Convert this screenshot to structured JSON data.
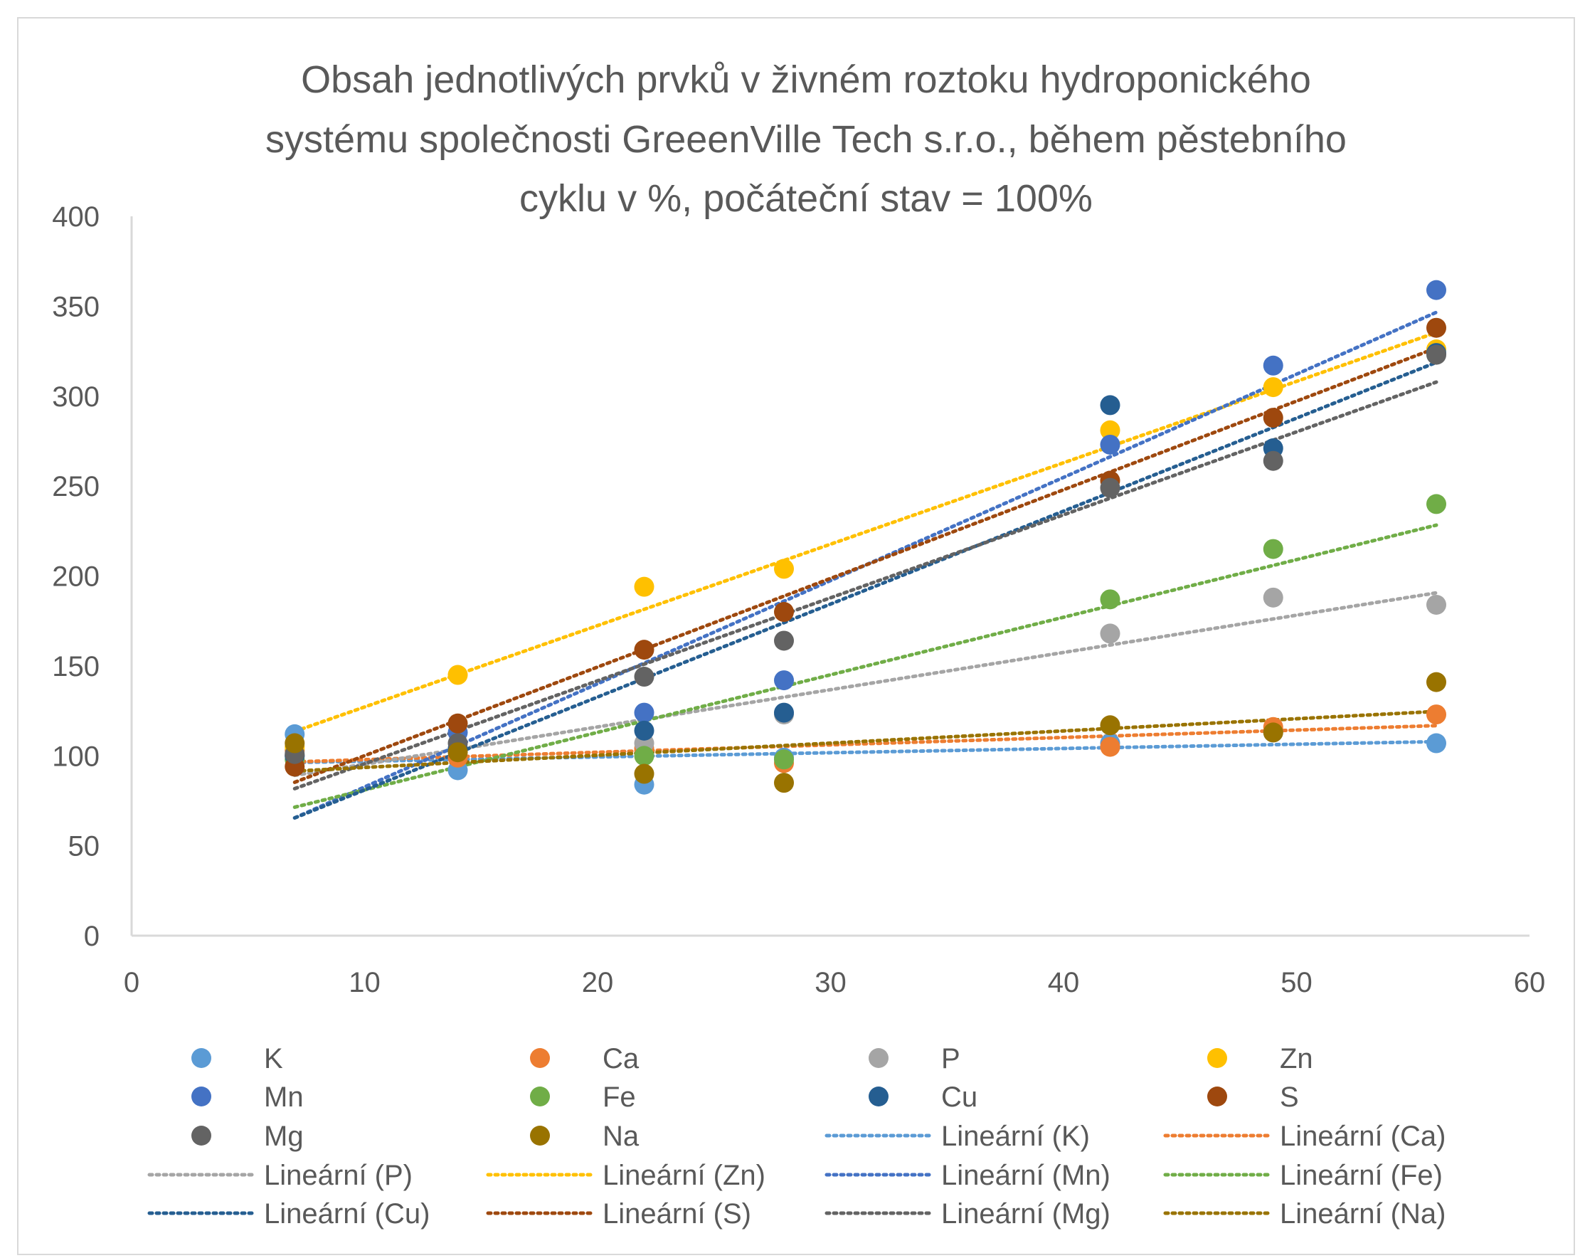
{
  "chart_data": {
    "type": "scatter",
    "title_lines": [
      "Obsah jednotlivých prvků v živném roztoku hydroponického",
      "systému společnosti GreeenVille Tech s.r.o., během pěstebního",
      "cyklu v %, počáteční stav = 100%"
    ],
    "xlabel": "",
    "ylabel": "",
    "xlim": [
      0,
      60
    ],
    "ylim": [
      0,
      400
    ],
    "xticks": [
      "0",
      "10",
      "20",
      "30",
      "40",
      "50",
      "60"
    ],
    "yticks": [
      "0",
      "50",
      "100",
      "150",
      "200",
      "250",
      "300",
      "350",
      "400"
    ],
    "grid": false,
    "legend_position": "bottom",
    "x": [
      7,
      14,
      22,
      28,
      42,
      49,
      56
    ],
    "series": [
      {
        "name": "K",
        "color": "#5b9bd5",
        "values": [
          112,
          92,
          84,
          99,
          107,
          113,
          107
        ]
      },
      {
        "name": "Ca",
        "color": "#ed7d31",
        "values": [
          103,
          99,
          104,
          96,
          105,
          116,
          123
        ]
      },
      {
        "name": "P",
        "color": "#a5a5a5",
        "values": [
          100,
          104,
          107,
          123,
          168,
          188,
          184
        ]
      },
      {
        "name": "Zn",
        "color": "#ffc000",
        "values": [
          105,
          145,
          194,
          204,
          281,
          305,
          326
        ]
      },
      {
        "name": "Mn",
        "color": "#4472c4",
        "values": [
          100,
          113,
          124,
          142,
          273,
          317,
          359
        ]
      },
      {
        "name": "Fe",
        "color": "#70ad47",
        "values": [
          98,
          103,
          100,
          98,
          187,
          215,
          240
        ]
      },
      {
        "name": "Cu",
        "color": "#255e91",
        "values": [
          100,
          104,
          114,
          124,
          295,
          271,
          324
        ]
      },
      {
        "name": "S",
        "color": "#9e480e",
        "values": [
          94,
          118,
          159,
          180,
          253,
          288,
          338
        ]
      },
      {
        "name": "Mg",
        "color": "#636363",
        "values": [
          101,
          107,
          144,
          164,
          249,
          264,
          323
        ]
      },
      {
        "name": "Na",
        "color": "#997300",
        "values": [
          107,
          102,
          90,
          85,
          117,
          113,
          141
        ]
      }
    ],
    "trendline_label": "Lineární"
  }
}
